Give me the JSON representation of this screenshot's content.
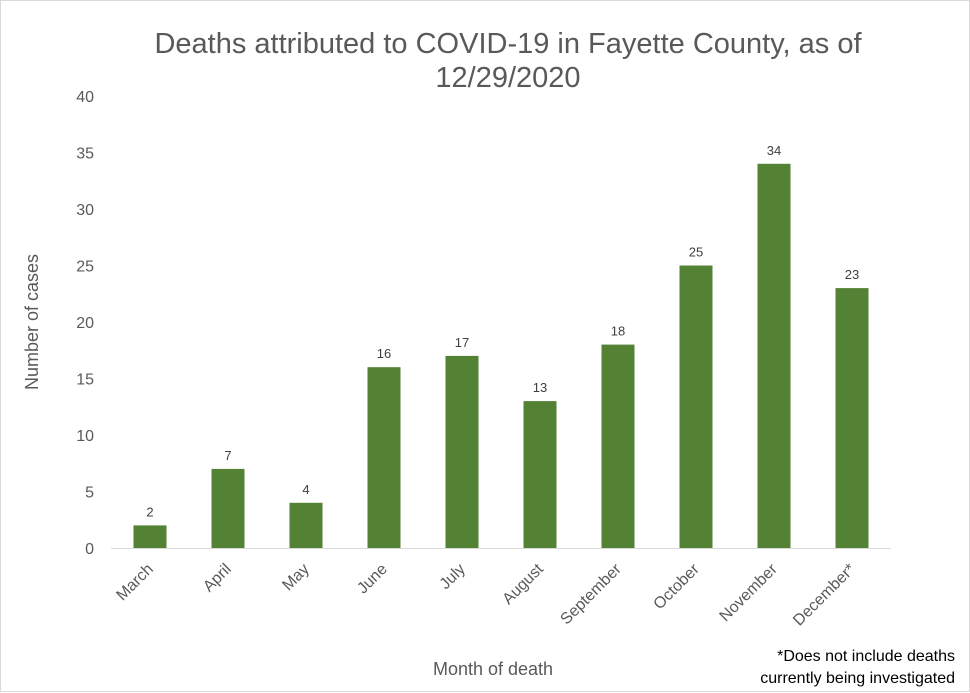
{
  "chart_data": {
    "type": "bar",
    "title_lines": [
      "Deaths attributed to COVID-19 in Fayette County, as of",
      "12/29/2020"
    ],
    "xlabel": "Month of death",
    "ylabel": "Number of cases",
    "categories": [
      "March",
      "April",
      "May",
      "June",
      "July",
      "August",
      "September",
      "October",
      "November",
      "December*"
    ],
    "values": [
      2,
      7,
      4,
      16,
      17,
      13,
      18,
      25,
      34,
      23
    ],
    "ylim": [
      0,
      40
    ],
    "yticks": [
      0,
      5,
      10,
      15,
      20,
      25,
      30,
      35,
      40
    ],
    "grid": false,
    "legend": "none",
    "data_labels": true,
    "bar_color": "#548235",
    "footnote_lines": [
      "*Does not include deaths",
      "currently being investigated"
    ]
  }
}
